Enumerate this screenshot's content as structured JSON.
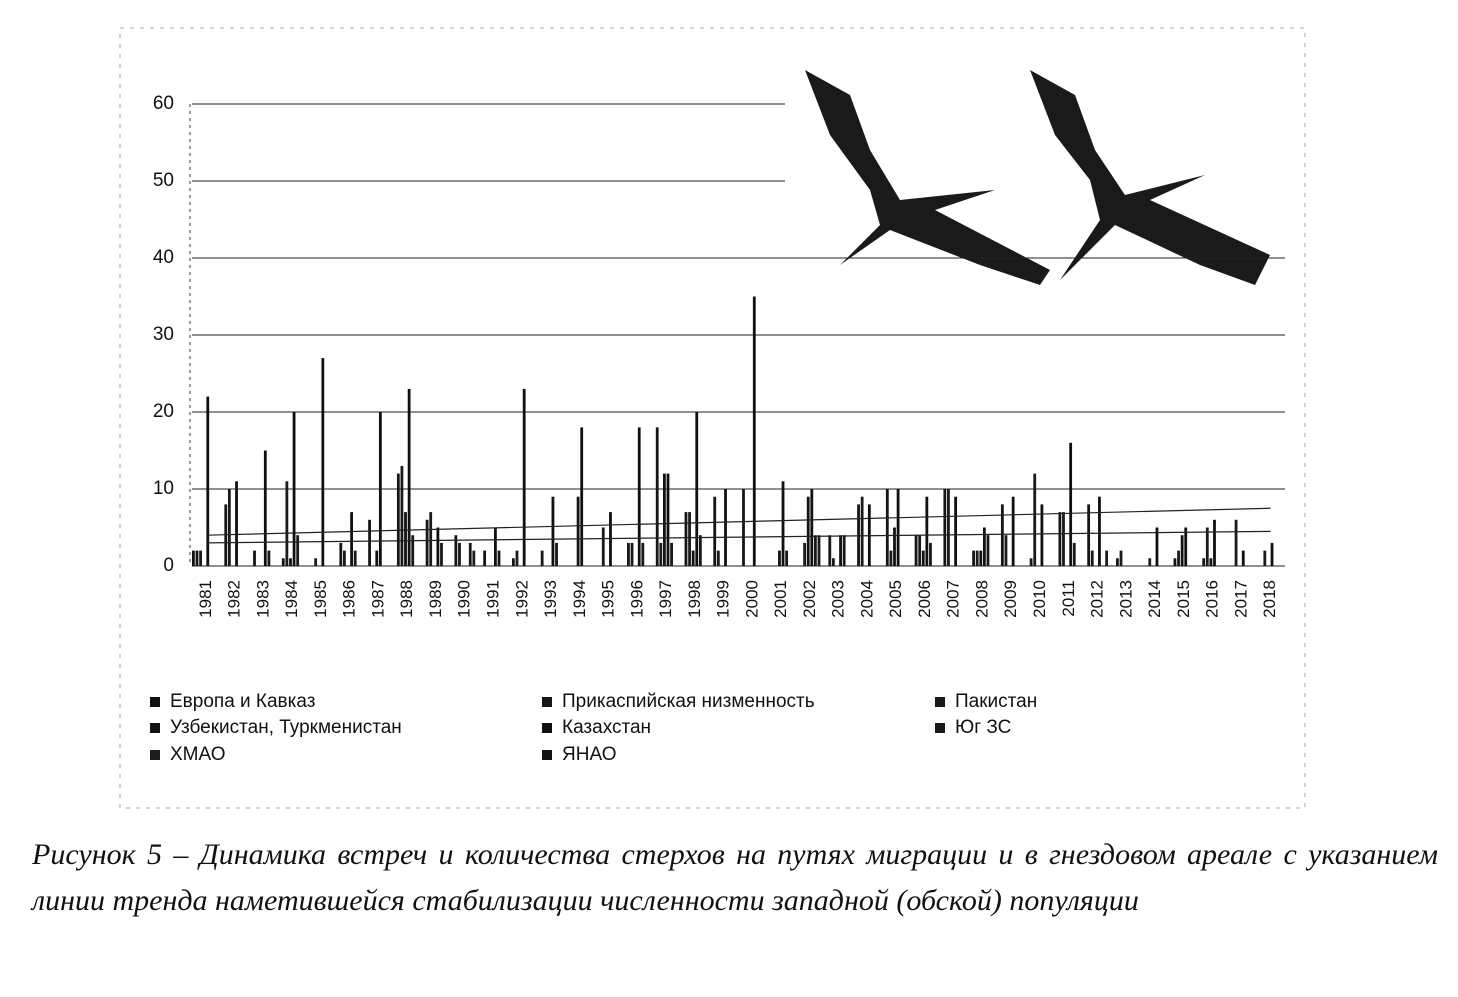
{
  "chart_data": {
    "type": "bar",
    "categories": [
      "1981",
      "1982",
      "1983",
      "1984",
      "1985",
      "1986",
      "1987",
      "1988",
      "1989",
      "1990",
      "1991",
      "1992",
      "1993",
      "1994",
      "1995",
      "1996",
      "1997",
      "1998",
      "1999",
      "2000",
      "2001",
      "2002",
      "2003",
      "2004",
      "2005",
      "2006",
      "2007",
      "2008",
      "2009",
      "2010",
      "2011",
      "2012",
      "2013",
      "2014",
      "2015",
      "2016",
      "2017",
      "2018"
    ],
    "series": [
      {
        "name": "Европа и Кавказ",
        "color": "#111111",
        "values": [
          2,
          0,
          0,
          0,
          0,
          0,
          0,
          0,
          0,
          0,
          0,
          0,
          0,
          0,
          0,
          0,
          0,
          0,
          0,
          0,
          0,
          0,
          0,
          0,
          0,
          0,
          0,
          0,
          0,
          0,
          0,
          0,
          0,
          0,
          0,
          0,
          0,
          0
        ]
      },
      {
        "name": "Прикаспийская низменность",
        "color": "#151515",
        "values": [
          2,
          8,
          2,
          1,
          0,
          3,
          6,
          12,
          6,
          4,
          2,
          1,
          2,
          0,
          0,
          3,
          18,
          7,
          9,
          10,
          0,
          0,
          4,
          8,
          10,
          4,
          10,
          2,
          8,
          1,
          7,
          8,
          1,
          0,
          1,
          1,
          0,
          0
        ]
      },
      {
        "name": "Пакистан",
        "color": "#1a1a1a",
        "values": [
          2,
          10,
          0,
          11,
          1,
          2,
          0,
          13,
          7,
          3,
          0,
          2,
          0,
          0,
          5,
          3,
          3,
          7,
          2,
          0,
          0,
          3,
          1,
          9,
          2,
          4,
          10,
          2,
          4,
          12,
          7,
          2,
          2,
          1,
          2,
          5,
          6,
          2
        ]
      },
      {
        "name": "Узбекистан, Туркменистан",
        "color": "#121212",
        "values": [
          0,
          0,
          0,
          1,
          0,
          0,
          2,
          7,
          0,
          0,
          0,
          0,
          0,
          9,
          0,
          0,
          12,
          2,
          0,
          0,
          2,
          9,
          0,
          0,
          5,
          2,
          0,
          2,
          0,
          0,
          0,
          0,
          0,
          0,
          4,
          1,
          0,
          0
        ]
      },
      {
        "name": "Казахстан",
        "color": "#101010",
        "values": [
          22,
          11,
          15,
          20,
          27,
          7,
          20,
          23,
          5,
          0,
          5,
          23,
          9,
          18,
          7,
          18,
          12,
          20,
          10,
          35,
          11,
          10,
          4,
          8,
          10,
          9,
          9,
          5,
          9,
          8,
          16,
          9,
          0,
          5,
          5,
          6,
          2,
          3
        ]
      },
      {
        "name": "Юг ЗС",
        "color": "#181818",
        "values": [
          0,
          0,
          2,
          4,
          0,
          2,
          0,
          4,
          3,
          3,
          2,
          0,
          3,
          0,
          0,
          3,
          3,
          4,
          0,
          0,
          2,
          4,
          4,
          0,
          0,
          3,
          0,
          4,
          0,
          0,
          3,
          0,
          0,
          0,
          0,
          0,
          0,
          0
        ]
      },
      {
        "name": "ХМАО",
        "color": "#1c1c1c",
        "values": [
          0,
          0,
          0,
          0,
          0,
          0,
          0,
          0,
          0,
          2,
          0,
          0,
          0,
          0,
          0,
          0,
          0,
          0,
          0,
          0,
          0,
          4,
          0,
          0,
          0,
          0,
          0,
          0,
          0,
          0,
          0,
          2,
          0,
          0,
          0,
          0,
          0,
          0
        ]
      },
      {
        "name": "ЯНАО",
        "color": "#141414",
        "values": [
          0,
          0,
          0,
          0,
          0,
          0,
          0,
          0,
          0,
          0,
          0,
          0,
          0,
          0,
          0,
          0,
          0,
          0,
          0,
          0,
          0,
          0,
          0,
          0,
          0,
          0,
          0,
          0,
          0,
          0,
          0,
          0,
          0,
          0,
          0,
          0,
          0,
          0
        ]
      }
    ],
    "trend_lines": [
      {
        "values": [
          4,
          7.5
        ]
      },
      {
        "values": [
          3,
          4.5
        ]
      }
    ],
    "ylim": [
      0,
      60
    ],
    "yticks": [
      0,
      10,
      20,
      30,
      40,
      50,
      60
    ],
    "grid": true
  },
  "caption": "Рисунок 5 – Динамика встреч и количества стерхов  на путях миграции и в гнездовом ареале с указанием линии тренда наметившейся стабилизации численности западной (обской) популяции"
}
